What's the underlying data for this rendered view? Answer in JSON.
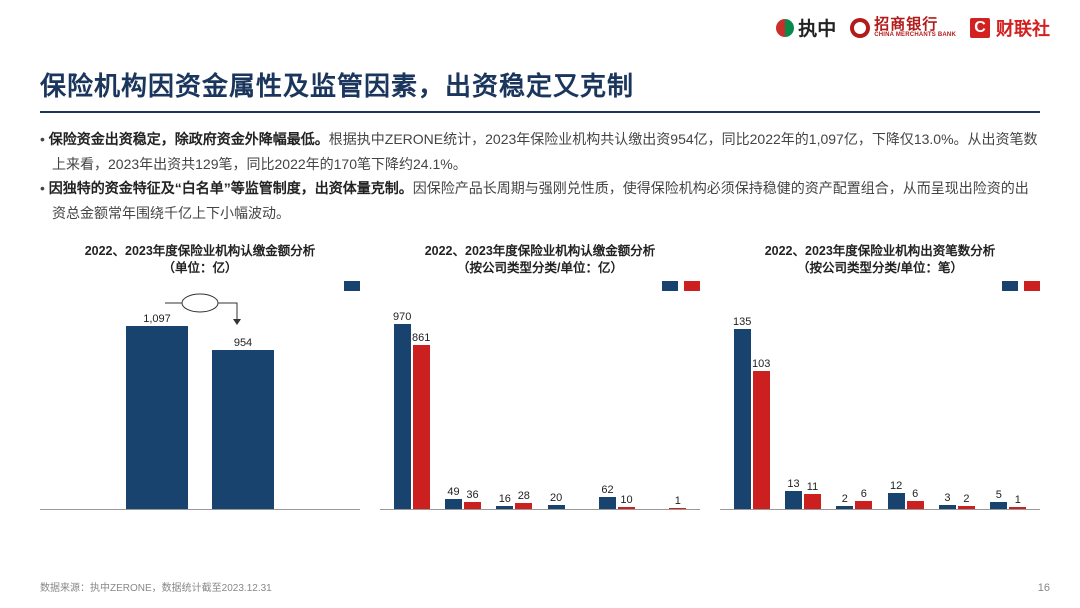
{
  "colors": {
    "primary": "#1b365d",
    "series_a": "#18436f",
    "series_b": "#cc1f1f",
    "text": "#333333",
    "muted": "#888888"
  },
  "logos": {
    "zhizhong": "执中",
    "cmb_cn": "招商银行",
    "cmb_en": "CHINA MERCHANTS BANK",
    "cls_c": "C",
    "cls_text": "财联社"
  },
  "title": "保险机构因资金属性及监管因素，出资稳定又克制",
  "bullets": [
    {
      "lead": "保险资金出资稳定，除政府资金外降幅最低。",
      "rest": "根据执中ZERONE统计，2023年保险业机构共认缴出资954亿，同比2022年的1,097亿，下降仅13.0%。从出资笔数上来看，2023年出资共129笔，同比2022年的170笔下降约24.1%。"
    },
    {
      "lead": "因独特的资金特征及“白名单”等监管制度，出资体量克制。",
      "rest": "因保险产品长周期与强刚兑性质，使得保险机构必须保持稳健的资产配置组合，从而呈现出险资的出资总金额常年围绕千亿上下小幅波动。"
    }
  ],
  "chart1": {
    "title": "2022、2023年度保险业机构认缴金额分析\n（单位：亿）",
    "type": "bar",
    "ylim": 1200,
    "bars": [
      {
        "label": "1,097",
        "value": 1097,
        "color": "#18436f"
      },
      {
        "label": "954",
        "value": 954,
        "color": "#18436f"
      }
    ],
    "legend_colors": [
      "#18436f"
    ]
  },
  "chart2": {
    "title": "2022、2023年度保险业机构认缴金额分析\n（按公司类型分类/单位：亿）",
    "type": "grouped-bar",
    "ylim": 1050,
    "legend_colors": [
      "#18436f",
      "#cc1f1f"
    ],
    "groups": [
      {
        "a": 970,
        "b": 861
      },
      {
        "a": 49,
        "b": 36
      },
      {
        "a": 16,
        "b": 28
      },
      {
        "a": 20,
        "b": null
      },
      {
        "a": 62,
        "b": 10
      },
      {
        "a": null,
        "b": 1
      }
    ]
  },
  "chart3": {
    "title": "2022、2023年度保险业机构出资笔数分析\n（按公司类型分类/单位：笔）",
    "type": "grouped-bar",
    "ylim": 150,
    "legend_colors": [
      "#18436f",
      "#cc1f1f"
    ],
    "groups": [
      {
        "a": 135,
        "b": 103
      },
      {
        "a": 13,
        "b": 11
      },
      {
        "a": 2,
        "b": 6
      },
      {
        "a": 12,
        "b": 6
      },
      {
        "a": 3,
        "b": 2
      },
      {
        "a": 5,
        "b": 1
      }
    ]
  },
  "footer": "数据来源：执中ZERONE，数据统计截至2023.12.31",
  "page": "16"
}
